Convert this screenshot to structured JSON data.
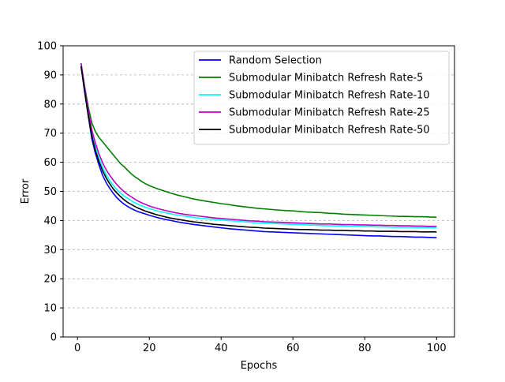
{
  "chart_data": {
    "type": "line",
    "title": "",
    "xlabel": "Epochs",
    "ylabel": "Error",
    "xlim": [
      -4,
      105
    ],
    "ylim": [
      0,
      100
    ],
    "xticks": [
      0,
      20,
      40,
      60,
      80,
      100
    ],
    "yticks": [
      0,
      10,
      20,
      30,
      40,
      50,
      60,
      70,
      80,
      90,
      100
    ],
    "grid": "y-dashed",
    "legend_position": "top-right",
    "x": [
      1,
      2,
      3,
      4,
      5,
      6,
      7,
      8,
      9,
      10,
      11,
      12,
      13,
      14,
      15,
      16,
      17,
      18,
      19,
      20,
      22,
      24,
      26,
      28,
      30,
      32,
      34,
      36,
      38,
      40,
      42,
      44,
      46,
      48,
      50,
      52,
      54,
      56,
      58,
      60,
      62,
      64,
      66,
      68,
      70,
      72,
      74,
      76,
      78,
      80,
      82,
      84,
      86,
      88,
      90,
      92,
      94,
      96,
      98,
      100
    ],
    "series": [
      {
        "name": "Random Selection",
        "color": "#0000ff",
        "values": [
          93,
          84,
          76,
          68,
          63,
          59,
          55.5,
          53,
          51,
          49.3,
          47.8,
          46.6,
          45.6,
          44.8,
          44.1,
          43.5,
          43,
          42.6,
          42.2,
          41.8,
          41.1,
          40.5,
          40,
          39.5,
          39.1,
          38.7,
          38.4,
          38.1,
          37.8,
          37.5,
          37.2,
          37,
          36.8,
          36.6,
          36.4,
          36.2,
          36.1,
          36,
          35.9,
          35.8,
          35.7,
          35.6,
          35.5,
          35.4,
          35.3,
          35.2,
          35.1,
          35,
          34.9,
          34.8,
          34.7,
          34.7,
          34.6,
          34.5,
          34.5,
          34.4,
          34.3,
          34.3,
          34.2,
          34.1
        ]
      },
      {
        "name": "Submodular Minibatch Refresh Rate-5",
        "color": "#008000",
        "values": [
          94,
          86,
          79,
          73.5,
          70.5,
          68.5,
          67,
          65.5,
          64,
          62.5,
          61,
          59.5,
          58.5,
          57.2,
          56,
          55,
          54.2,
          53.3,
          52.6,
          52,
          51,
          50.2,
          49.4,
          48.7,
          48.1,
          47.5,
          47,
          46.6,
          46.2,
          45.8,
          45.5,
          45.1,
          44.8,
          44.5,
          44.2,
          44,
          43.8,
          43.6,
          43.4,
          43.3,
          43.1,
          42.9,
          42.8,
          42.7,
          42.5,
          42.4,
          42.2,
          42.1,
          42,
          41.9,
          41.8,
          41.7,
          41.6,
          41.5,
          41.4,
          41.4,
          41.3,
          41.3,
          41.2,
          41.1
        ]
      },
      {
        "name": "Submodular Minibatch Refresh Rate-10",
        "color": "#00ffff",
        "values": [
          94,
          85,
          77,
          70,
          65,
          61.3,
          58.2,
          55.7,
          53.7,
          52,
          50.6,
          49.4,
          48.4,
          47.6,
          46.8,
          46.1,
          45.5,
          45,
          44.5,
          44.1,
          43.4,
          42.8,
          42.3,
          41.8,
          41.5,
          41.1,
          40.8,
          40.6,
          40.4,
          40.2,
          40,
          39.8,
          39.6,
          39.4,
          39.2,
          39.1,
          39,
          38.9,
          38.8,
          38.7,
          38.6,
          38.5,
          38.4,
          38.3,
          38.2,
          38.2,
          38.1,
          38,
          38,
          37.9,
          37.9,
          37.8,
          37.8,
          37.7,
          37.7,
          37.7,
          37.6,
          37.6,
          37.6,
          37.5
        ]
      },
      {
        "name": "Submodular Minibatch Refresh Rate-25",
        "color": "#bf00bf",
        "values": [
          94,
          85.5,
          78,
          71,
          66.5,
          62.8,
          59.8,
          57.4,
          55.5,
          53.8,
          52.3,
          51,
          49.9,
          48.9,
          48.1,
          47.3,
          46.6,
          46,
          45.5,
          45,
          44.2,
          43.6,
          43,
          42.5,
          42.1,
          41.8,
          41.5,
          41.2,
          40.9,
          40.7,
          40.5,
          40.3,
          40.1,
          39.9,
          39.8,
          39.6,
          39.5,
          39.4,
          39.3,
          39.2,
          39.1,
          39,
          38.9,
          38.8,
          38.8,
          38.7,
          38.6,
          38.6,
          38.5,
          38.5,
          38.4,
          38.4,
          38.3,
          38.3,
          38.2,
          38.2,
          38.1,
          38.1,
          38,
          38
        ]
      },
      {
        "name": "Submodular Minibatch Refresh Rate-50",
        "color": "#000000",
        "values": [
          93,
          84.5,
          76,
          69,
          64,
          60.2,
          57.1,
          54.6,
          52.6,
          50.8,
          49.4,
          48.2,
          47.1,
          46.2,
          45.5,
          44.8,
          44.2,
          43.7,
          43.2,
          42.8,
          42,
          41.4,
          40.8,
          40.4,
          40,
          39.6,
          39.3,
          39,
          38.7,
          38.5,
          38.3,
          38.1,
          37.9,
          37.7,
          37.6,
          37.4,
          37.3,
          37.2,
          37.1,
          37,
          36.9,
          36.9,
          36.8,
          36.7,
          36.7,
          36.6,
          36.6,
          36.5,
          36.5,
          36.4,
          36.4,
          36.3,
          36.3,
          36.3,
          36.2,
          36.2,
          36.2,
          36.1,
          36.1,
          36.1
        ]
      }
    ]
  }
}
